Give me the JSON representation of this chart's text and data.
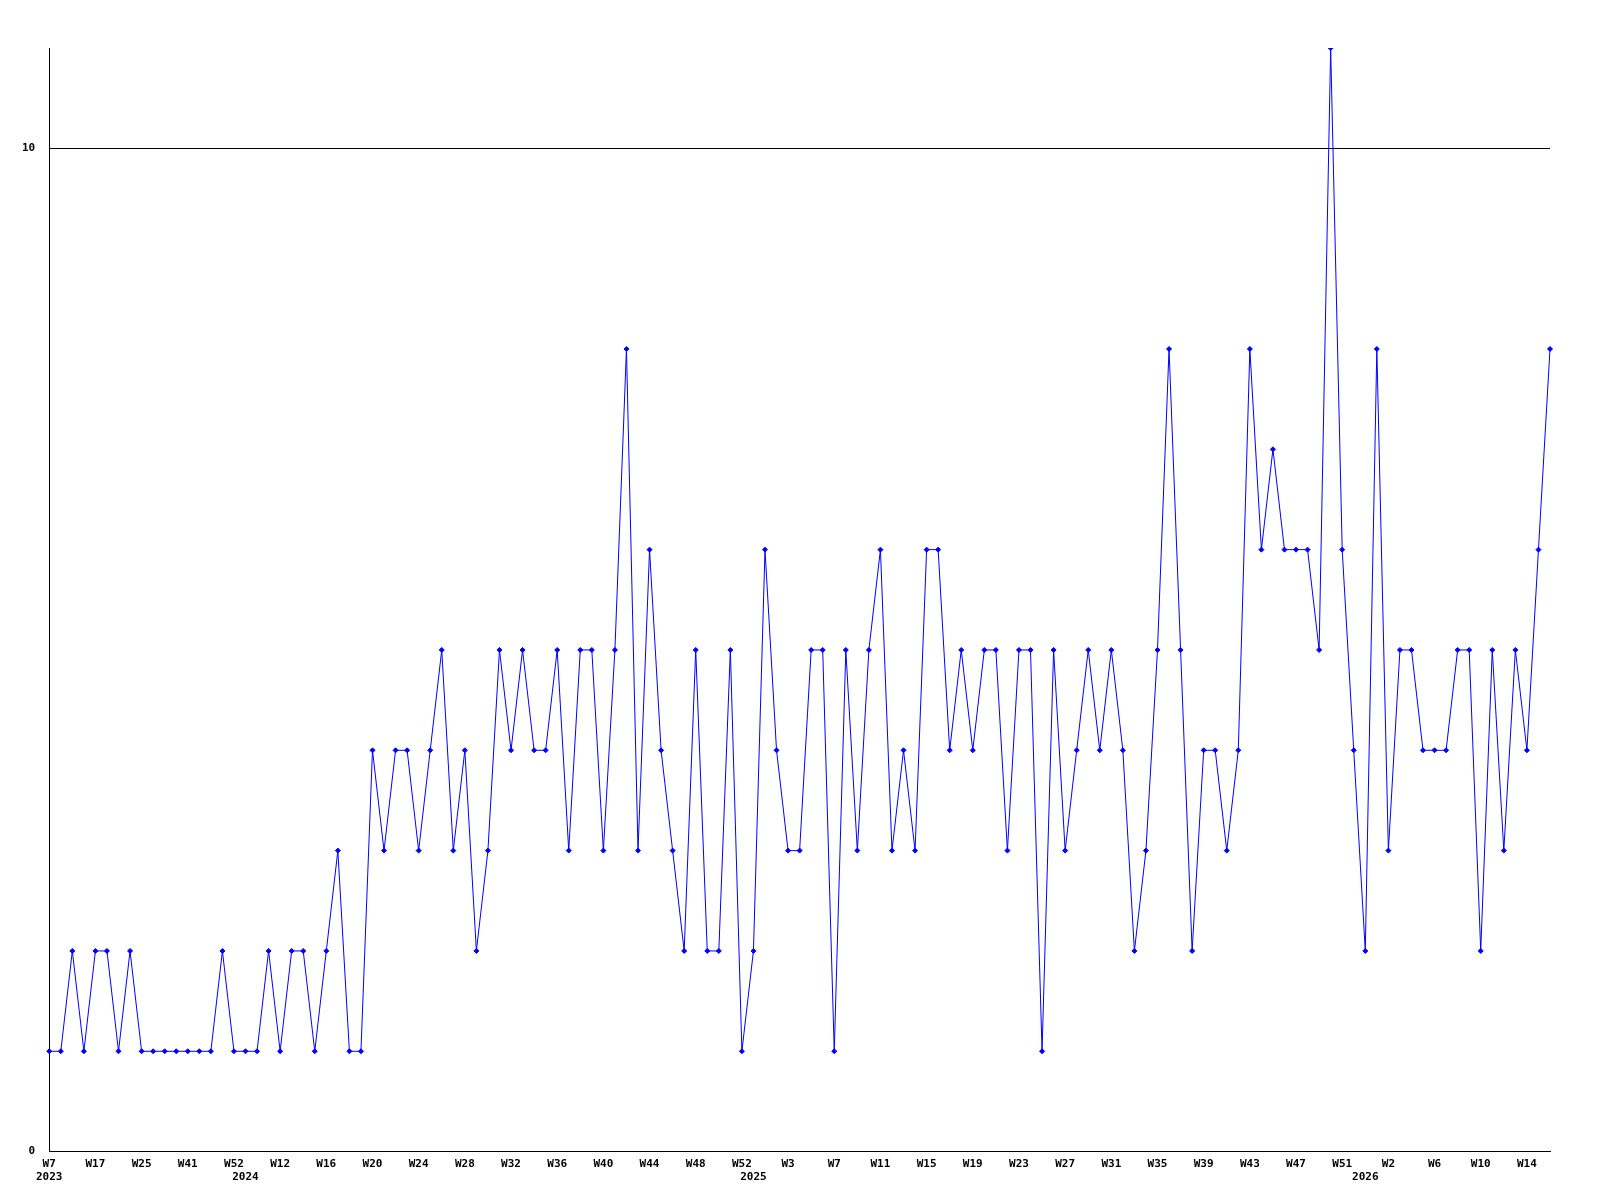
{
  "chart_data": {
    "type": "line",
    "categories": [
      "W7\n2023",
      null,
      null,
      null,
      "W17",
      null,
      null,
      null,
      "W25",
      null,
      null,
      null,
      "W41",
      null,
      null,
      null,
      "W52",
      "\n2024",
      null,
      null,
      "W12",
      null,
      null,
      null,
      "W16",
      null,
      null,
      null,
      "W20",
      null,
      null,
      null,
      "W24",
      null,
      null,
      null,
      "W28",
      null,
      null,
      null,
      "W32",
      null,
      null,
      null,
      "W36",
      null,
      null,
      null,
      "W40",
      null,
      null,
      null,
      "W44",
      null,
      null,
      null,
      "W48",
      null,
      null,
      null,
      "W52",
      "\n2025",
      null,
      null,
      "W3",
      null,
      null,
      null,
      "W7",
      null,
      null,
      null,
      "W11",
      null,
      null,
      null,
      "W15",
      null,
      null,
      null,
      "W19",
      null,
      null,
      null,
      "W23",
      null,
      null,
      null,
      "W27",
      null,
      null,
      null,
      "W31",
      null,
      null,
      null,
      "W35",
      null,
      null,
      null,
      "W39",
      null,
      null,
      null,
      "W43",
      null,
      null,
      null,
      "W47",
      null,
      null,
      null,
      "W51",
      null,
      "\n2026",
      null,
      "W2",
      null,
      null,
      null,
      "W6",
      null,
      null,
      null,
      "W10",
      null,
      null,
      null,
      "W14",
      null,
      null
    ],
    "series": [
      {
        "color": "#0000ff",
        "values": [
          1,
          1,
          2,
          1,
          2,
          2,
          1,
          2,
          1,
          1,
          1,
          1,
          1,
          1,
          1,
          2,
          1,
          1,
          1,
          2,
          1,
          2,
          2,
          1,
          2,
          3,
          1,
          1,
          4,
          3,
          4,
          4,
          3,
          4,
          5,
          3,
          4,
          2,
          3,
          5,
          4,
          5,
          4,
          4,
          5,
          3,
          5,
          5,
          3,
          5,
          8,
          3,
          6,
          4,
          3,
          2,
          5,
          2,
          2,
          5,
          1,
          2,
          6,
          4,
          3,
          3,
          5,
          5,
          1,
          5,
          3,
          5,
          6,
          3,
          4,
          3,
          6,
          6,
          4,
          5,
          4,
          5,
          5,
          3,
          5,
          5,
          1,
          5,
          3,
          4,
          5,
          4,
          5,
          4,
          2,
          3,
          5,
          8,
          5,
          2,
          4,
          4,
          3,
          4,
          8,
          6,
          7,
          6,
          6,
          6,
          5,
          11,
          6,
          4,
          2,
          8,
          3,
          5,
          5,
          4,
          4,
          4,
          5,
          5,
          2,
          5,
          3,
          5,
          4,
          6,
          8
        ]
      }
    ],
    "ylim": [
      0,
      11
    ],
    "yticks": [
      0,
      10
    ],
    "grid": "y",
    "legend": false,
    "marker": "diamond",
    "line_style": "solid"
  }
}
